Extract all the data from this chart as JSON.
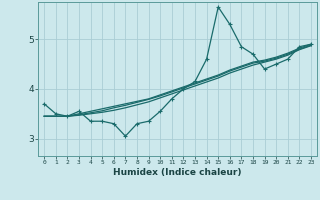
{
  "xlabel": "Humidex (Indice chaleur)",
  "ylabel": "",
  "background_color": "#cce8ec",
  "grid_color": "#aacdd5",
  "line_color": "#1a6b6b",
  "x_ticks": [
    0,
    1,
    2,
    3,
    4,
    5,
    6,
    7,
    8,
    9,
    10,
    11,
    12,
    13,
    14,
    15,
    16,
    17,
    18,
    19,
    20,
    21,
    22,
    23
  ],
  "y_ticks": [
    3,
    4,
    5
  ],
  "ylim": [
    2.65,
    5.75
  ],
  "xlim": [
    -0.5,
    23.5
  ],
  "series1": [
    3.7,
    3.5,
    3.45,
    3.55,
    3.35,
    3.35,
    3.3,
    3.05,
    3.3,
    3.35,
    3.55,
    3.8,
    4.0,
    4.15,
    4.6,
    5.65,
    5.3,
    4.85,
    4.7,
    4.4,
    4.5,
    4.6,
    4.85,
    4.9
  ],
  "series2": [
    3.45,
    3.45,
    3.45,
    3.5,
    3.55,
    3.6,
    3.65,
    3.7,
    3.75,
    3.8,
    3.88,
    3.96,
    4.04,
    4.12,
    4.2,
    4.28,
    4.38,
    4.46,
    4.54,
    4.58,
    4.64,
    4.72,
    4.82,
    4.9
  ],
  "series3": [
    3.45,
    3.45,
    3.45,
    3.48,
    3.52,
    3.56,
    3.62,
    3.67,
    3.73,
    3.79,
    3.86,
    3.94,
    4.02,
    4.1,
    4.18,
    4.26,
    4.36,
    4.44,
    4.52,
    4.56,
    4.62,
    4.7,
    4.8,
    4.88
  ],
  "series4": [
    3.45,
    3.45,
    3.45,
    3.47,
    3.5,
    3.53,
    3.57,
    3.62,
    3.68,
    3.74,
    3.82,
    3.9,
    3.98,
    4.06,
    4.14,
    4.22,
    4.32,
    4.4,
    4.48,
    4.54,
    4.6,
    4.68,
    4.79,
    4.87
  ]
}
